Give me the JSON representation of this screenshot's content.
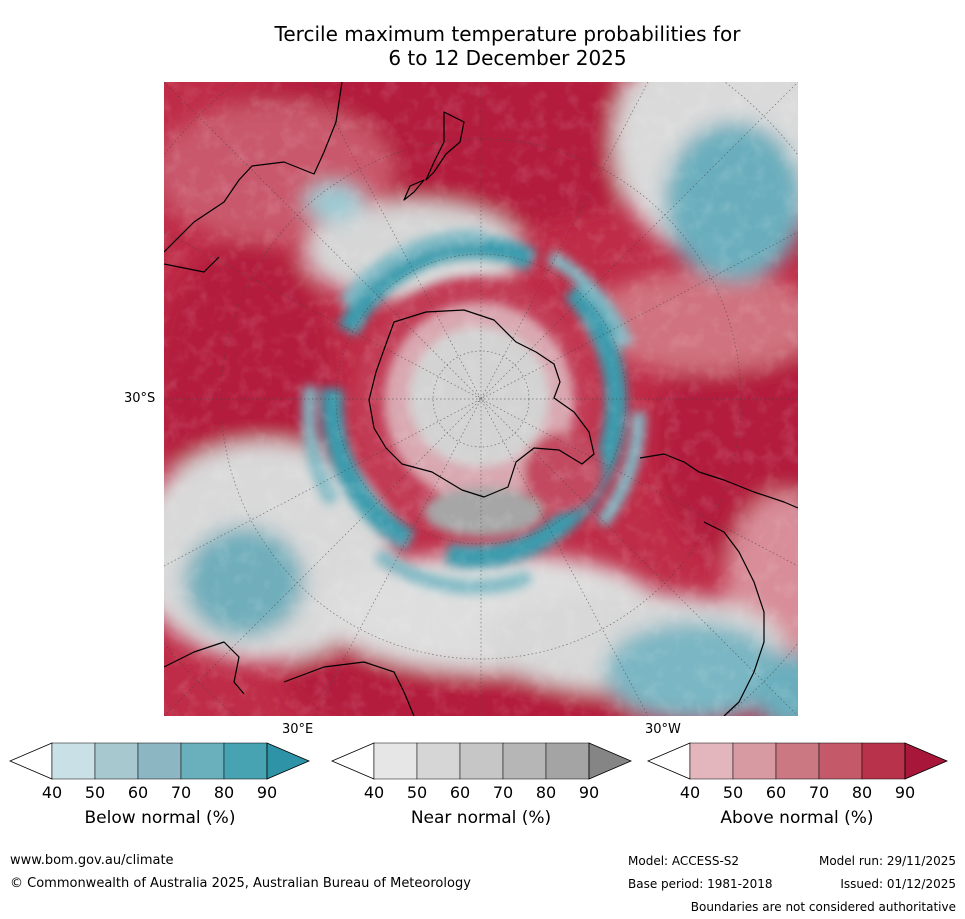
{
  "title_line1": "Tercile maximum temperature probabilities for",
  "title_line2": "6 to 12 December 2025",
  "map": {
    "lat_label": "30°S",
    "lon_label_east": "30°E",
    "lon_label_west": "30°W",
    "colors": {
      "above_strong": "#b31b3c",
      "above_mid": "#c9596c",
      "above_light": "#e0a8b2",
      "near": "#d4d4d4",
      "near_dark": "#a8a8a8",
      "below_light": "#c7e0e6",
      "below_mid": "#6aaebd",
      "below_strong": "#2e95a8"
    }
  },
  "legends": [
    {
      "label": "Below normal (%)",
      "ticks": [
        "40",
        "50",
        "60",
        "70",
        "80",
        "90"
      ],
      "colors": [
        "#ffffff",
        "#c9e1e6",
        "#a7c8ce",
        "#8cb6c2",
        "#6ab0bc",
        "#47a3b2",
        "#2e93a6"
      ]
    },
    {
      "label": "Near normal (%)",
      "ticks": [
        "40",
        "50",
        "60",
        "70",
        "80",
        "90"
      ],
      "colors": [
        "#ffffff",
        "#e6e6e6",
        "#d6d6d6",
        "#c6c6c6",
        "#b6b6b6",
        "#a4a4a4",
        "#858585"
      ]
    },
    {
      "label": "Above normal (%)",
      "ticks": [
        "40",
        "50",
        "60",
        "70",
        "80",
        "90"
      ],
      "colors": [
        "#ffffff",
        "#e2b6bc",
        "#d79aa2",
        "#cb7883",
        "#c45a69",
        "#b8324b",
        "#a8163a"
      ]
    }
  ],
  "footer": {
    "website": "www.bom.gov.au/climate",
    "copyright": "© Commonwealth of Australia 2025, Australian Bureau of Meteorology",
    "model": "Model: ACCESS-S2",
    "base_period": "Base period: 1981-2018",
    "model_run": "Model run: 29/11/2025",
    "issued": "Issued: 01/12/2025",
    "disclaimer": "Boundaries are not considered authoritative"
  }
}
